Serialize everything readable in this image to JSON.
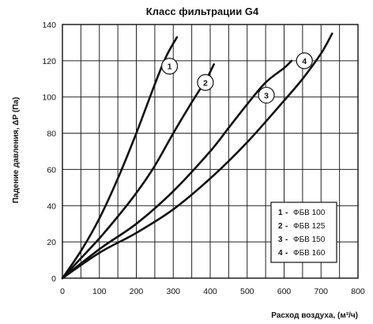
{
  "chart_data": {
    "type": "line",
    "title": "Класс фильтрации G4",
    "ylabel": "Падение давления, ΔP (Па)",
    "xlabel": "Расход воздуха, (м³/ч)",
    "xlim": [
      0,
      800
    ],
    "ylim": [
      0,
      140
    ],
    "x_ticks": [
      0,
      100,
      200,
      300,
      400,
      500,
      600,
      700,
      800
    ],
    "y_ticks": [
      0,
      20,
      40,
      60,
      80,
      100,
      120,
      140
    ],
    "grid": true,
    "legend_position": "bottom-right",
    "series": [
      {
        "name": "ФБВ 100",
        "marker_label": "1",
        "x": [
          0,
          50,
          100,
          150,
          200,
          250,
          280,
          310
        ],
        "y": [
          0,
          15,
          33,
          55,
          80,
          107,
          122,
          133
        ],
        "marker_at": [
          290,
          117
        ]
      },
      {
        "name": "ФБВ 125",
        "marker_label": "2",
        "x": [
          0,
          50,
          100,
          150,
          200,
          250,
          300,
          350,
          390,
          410
        ],
        "y": [
          0,
          11,
          22,
          34,
          47,
          62,
          80,
          97,
          110,
          118
        ],
        "marker_at": [
          387,
          108
        ]
      },
      {
        "name": "ФБВ 150",
        "marker_label": "3",
        "x": [
          0,
          100,
          200,
          300,
          400,
          450,
          500,
          550,
          600,
          620
        ],
        "y": [
          0,
          16,
          30,
          48,
          70,
          83,
          96,
          108,
          116,
          120
        ],
        "marker_at": [
          552,
          101
        ]
      },
      {
        "name": "ФБВ 160",
        "marker_label": "4",
        "x": [
          0,
          100,
          200,
          300,
          400,
          500,
          600,
          650,
          700,
          730
        ],
        "y": [
          0,
          14,
          25,
          38,
          55,
          75,
          98,
          110,
          124,
          135
        ],
        "marker_at": [
          655,
          120
        ]
      }
    ],
    "legend": [
      {
        "num": "1",
        "dash": "-",
        "label": "ФБВ 100"
      },
      {
        "num": "2",
        "dash": "-",
        "label": "ФБВ 125"
      },
      {
        "num": "3",
        "dash": "-",
        "label": "ФБВ 150"
      },
      {
        "num": "4",
        "dash": "-",
        "label": "ФБВ 160"
      }
    ]
  }
}
